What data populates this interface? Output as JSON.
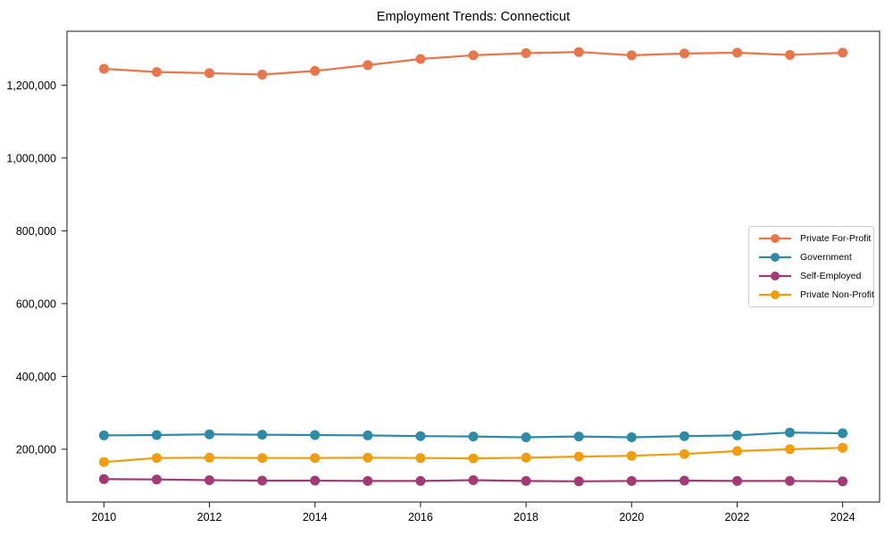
{
  "figure": {
    "title": "Employment Trends: Connecticut"
  },
  "chart_data": {
    "type": "line",
    "title": "Employment Trends: Connecticut",
    "x": [
      2010,
      2011,
      2012,
      2013,
      2014,
      2015,
      2016,
      2017,
      2018,
      2019,
      2020,
      2021,
      2022,
      2023,
      2024
    ],
    "series": [
      {
        "name": "Private For-Profit",
        "color": "#E8764A",
        "values": [
          1245000,
          1236000,
          1233000,
          1229000,
          1239000,
          1255000,
          1272000,
          1282000,
          1288000,
          1291000,
          1282000,
          1287000,
          1289000,
          1283000,
          1289000
        ]
      },
      {
        "name": "Government",
        "color": "#2E8BA6",
        "values": [
          238000,
          239000,
          241000,
          240000,
          239000,
          238000,
          236000,
          235000,
          233000,
          235000,
          233000,
          236000,
          238000,
          246000,
          244000
        ]
      },
      {
        "name": "Self-Employed",
        "color": "#A33A75",
        "values": [
          118000,
          117000,
          115000,
          114000,
          114000,
          113000,
          113000,
          115000,
          113000,
          112000,
          113000,
          114000,
          113000,
          113000,
          112000
        ]
      },
      {
        "name": "Private Non-Profit",
        "color": "#F09D0E",
        "values": [
          165000,
          176000,
          177000,
          176000,
          176000,
          177000,
          176000,
          175000,
          177000,
          180000,
          182000,
          187000,
          195000,
          200000,
          204000
        ]
      }
    ],
    "xlabel": "",
    "ylabel": "",
    "xticks": [
      2010,
      2012,
      2014,
      2016,
      2018,
      2020,
      2022,
      2024
    ],
    "yticks": [
      200000,
      400000,
      600000,
      800000,
      1000000,
      1200000
    ],
    "ytick_labels": [
      "200,000",
      "400,000",
      "600,000",
      "800,000",
      "1,000,000",
      "1,200,000"
    ],
    "xlim": [
      2009.3,
      2024.7
    ],
    "ylim": [
      55000,
      1348000
    ],
    "grid": false,
    "legend_position": "center right"
  }
}
